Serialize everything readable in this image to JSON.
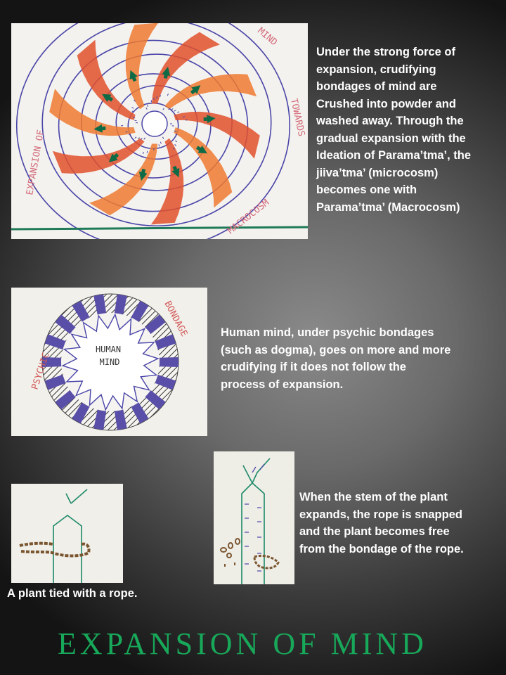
{
  "captions": {
    "expansion": "Under the strong force of\nexpansion,  crudifying\nbondages of mind are\nCrushed  into powder and\nwashed  away. Through the\ngradual  expansion with the\nIdeation  of Parama’tma’,  the\njiiva’tma’  (microcosm)\nbecomes one with\nParama’tma’  (Macrocosm)",
    "bondage": "Human mind, under psychic bondages\n(such as dogma), goes on more and more\ncrudifying  if it does not follow the\nprocess of expansion.",
    "rope_snapped": "When the stem of the plant\nexpands, the rope is snapped\nand the plant becomes free\nfrom the bondage of the rope.",
    "plant_tied": "A plant tied with a rope."
  },
  "title": "EXPANSION OF MIND",
  "drawings": {
    "expansion": {
      "left_text": "EXPANSION  OF",
      "top_text": "MIND",
      "right_text": "TOWARDS",
      "bottom_text": "MACROCOSM"
    },
    "bondage": {
      "center_line1": "HUMAN",
      "center_line2": "MIND",
      "left_text": "PSYCHIC",
      "right_text": "BONDAGE"
    }
  },
  "colors": {
    "title": "#18a85a",
    "caption": "#ffffff",
    "ring": "#4a45a8",
    "ray_orange": "#ee6a2a",
    "ray_red": "#d9432a",
    "arrow": "#0f6b46",
    "annotation_red": "#d46a7a",
    "stem_green": "#1d8a6a",
    "rope_brown": "#7a5530"
  }
}
